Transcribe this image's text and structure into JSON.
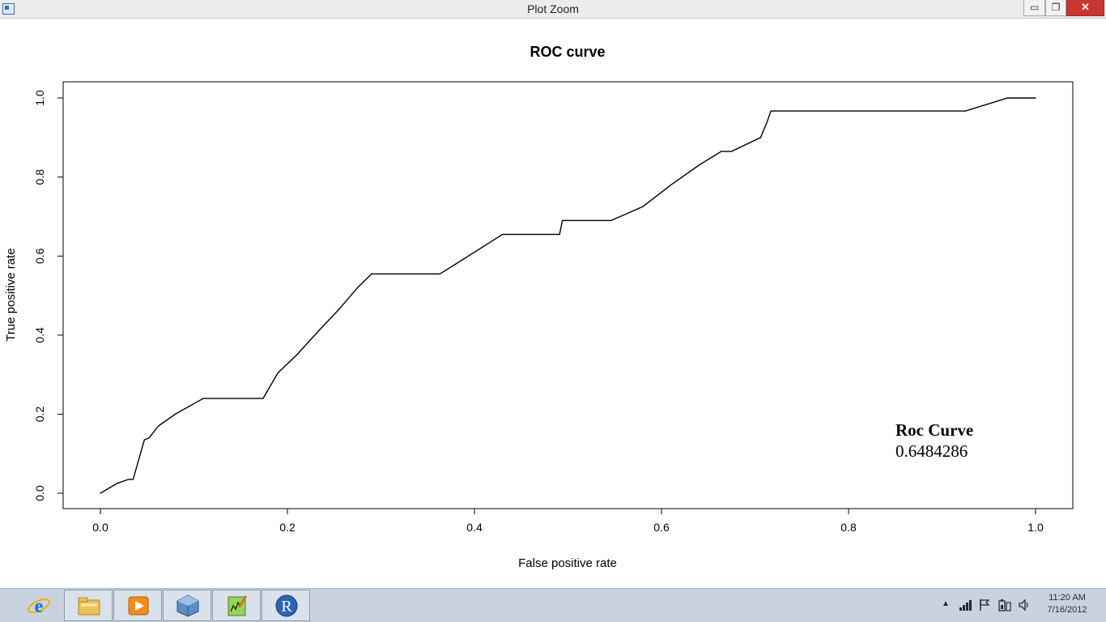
{
  "window": {
    "title": "Plot Zoom",
    "minimize_glyph": "▭",
    "maximize_glyph": "❐",
    "close_glyph": "✕"
  },
  "chart_data": {
    "type": "line",
    "title": "ROC curve",
    "xlabel": "False positive rate",
    "ylabel": "True positive rate",
    "xlim": [
      0.0,
      1.0
    ],
    "ylim": [
      0.0,
      1.0
    ],
    "xticks": [
      "0.0",
      "0.2",
      "0.4",
      "0.6",
      "0.8",
      "1.0"
    ],
    "yticks": [
      "0.0",
      "0.2",
      "0.4",
      "0.6",
      "0.8",
      "1.0"
    ],
    "grid": false,
    "legend_position": "bottom-right",
    "legend_title": "Roc Curve",
    "legend_value": "0.6484286",
    "series": [
      {
        "x": [
          0.0,
          0.018,
          0.03,
          0.035,
          0.047,
          0.052,
          0.062,
          0.08,
          0.11,
          0.174,
          0.19,
          0.21,
          0.235,
          0.255,
          0.275,
          0.29,
          0.363,
          0.38,
          0.43,
          0.491,
          0.494,
          0.546,
          0.58,
          0.61,
          0.64,
          0.664,
          0.675,
          0.706,
          0.713,
          0.717,
          0.925,
          0.97,
          1.0
        ],
        "y": [
          0.0,
          0.025,
          0.035,
          0.035,
          0.135,
          0.14,
          0.17,
          0.2,
          0.24,
          0.24,
          0.305,
          0.35,
          0.415,
          0.465,
          0.52,
          0.555,
          0.555,
          0.58,
          0.655,
          0.655,
          0.69,
          0.69,
          0.725,
          0.78,
          0.83,
          0.865,
          0.865,
          0.9,
          0.94,
          0.967,
          0.967,
          1.0,
          1.0
        ]
      }
    ]
  },
  "taskbar": {
    "apps": [
      {
        "name": "internet-explorer",
        "label": "e"
      },
      {
        "name": "file-explorer",
        "label": ""
      },
      {
        "name": "media-player",
        "label": ""
      },
      {
        "name": "virtualbox",
        "label": ""
      },
      {
        "name": "notepad",
        "label": ""
      },
      {
        "name": "r-console",
        "label": "R"
      }
    ],
    "tray_caret": "▲",
    "time": "11:20 AM",
    "date": "7/16/2012"
  }
}
